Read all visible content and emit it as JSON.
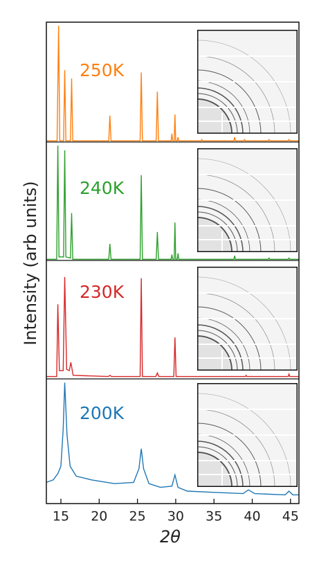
{
  "chart_data": {
    "type": "line",
    "x_label": "2θ",
    "y_label": "Intensity (arb units)",
    "xlim": [
      13.1,
      46.1
    ],
    "xticks": [
      15,
      20,
      25,
      30,
      35,
      40,
      45
    ],
    "ylim": [
      0,
      100
    ],
    "series": [
      {
        "name": "250K",
        "color": "#ff7f0e",
        "x": [
          13.1,
          14.5,
          14.7,
          14.85,
          15.35,
          15.5,
          15.65,
          16.25,
          16.4,
          16.55,
          21.25,
          21.4,
          21.55,
          25.35,
          25.5,
          25.65,
          27.45,
          27.6,
          27.75,
          29.4,
          29.5,
          29.6,
          29.8,
          29.9,
          30.0,
          30.2,
          30.3,
          30.4,
          33.3,
          33.4,
          33.5,
          37.6,
          37.7,
          37.8,
          38.9,
          39.0,
          39.1,
          42.1,
          42.2,
          42.3,
          44.7,
          44.8,
          44.9,
          46.1
        ],
        "values": [
          1,
          1,
          97,
          1,
          1,
          60,
          1,
          1,
          53,
          1,
          1,
          22,
          1,
          1,
          58,
          1,
          1,
          42,
          1,
          1,
          7,
          1,
          1,
          23,
          1,
          1,
          4,
          1,
          1,
          2,
          1,
          1,
          4,
          1,
          1,
          2,
          1,
          1,
          2,
          1,
          1,
          2,
          1,
          1
        ]
      },
      {
        "name": "240K",
        "color": "#2ca02c",
        "x": [
          13.1,
          14.45,
          14.6,
          14.75,
          15.35,
          15.5,
          15.65,
          16.25,
          16.4,
          16.55,
          21.25,
          21.4,
          21.55,
          25.35,
          25.5,
          25.65,
          27.45,
          27.6,
          27.75,
          29.4,
          29.5,
          29.6,
          29.8,
          29.9,
          30.0,
          30.2,
          30.3,
          30.4,
          37.6,
          37.7,
          37.8,
          42.1,
          42.2,
          42.3,
          44.7,
          44.8,
          44.9,
          46.1
        ],
        "values": [
          1,
          1,
          97,
          3,
          3,
          93,
          3,
          2,
          40,
          1,
          1,
          14,
          1,
          1,
          72,
          1,
          1,
          24,
          1,
          1,
          5,
          1,
          1,
          32,
          1,
          1,
          6,
          1,
          1,
          4,
          1,
          1,
          2,
          1,
          1,
          2,
          1,
          1
        ]
      },
      {
        "name": "230K",
        "color": "#d62728",
        "x": [
          13.1,
          14.45,
          14.6,
          14.8,
          15.3,
          15.5,
          15.75,
          16.1,
          16.3,
          16.6,
          21.2,
          21.4,
          21.6,
          25.35,
          25.5,
          25.65,
          27.4,
          27.6,
          27.8,
          29.75,
          29.9,
          30.05,
          39.1,
          39.2,
          39.3,
          44.7,
          44.8,
          44.9,
          46.1
        ],
        "values": [
          2,
          2,
          63,
          7,
          7,
          86,
          8,
          7,
          14,
          3,
          2,
          3,
          2,
          2,
          85,
          2,
          2,
          5,
          2,
          2,
          35,
          2,
          2,
          3,
          2,
          2,
          4,
          2,
          2
        ]
      },
      {
        "name": "200K",
        "color": "#1f77b4",
        "x": [
          13.1,
          14.0,
          14.6,
          15.0,
          15.3,
          15.5,
          15.8,
          16.2,
          17.0,
          19.0,
          22.0,
          24.5,
          25.2,
          25.5,
          25.8,
          26.5,
          28.0,
          29.5,
          29.9,
          30.3,
          31.5,
          35.0,
          38.8,
          39.5,
          40.3,
          44.3,
          44.8,
          45.3,
          46.1
        ],
        "values": [
          17,
          19,
          24,
          30,
          60,
          97,
          55,
          30,
          22,
          19,
          16,
          17,
          28,
          44,
          28,
          16,
          13,
          14,
          23,
          13,
          10,
          9,
          8,
          11,
          8,
          7,
          10,
          7,
          7
        ]
      }
    ]
  }
}
